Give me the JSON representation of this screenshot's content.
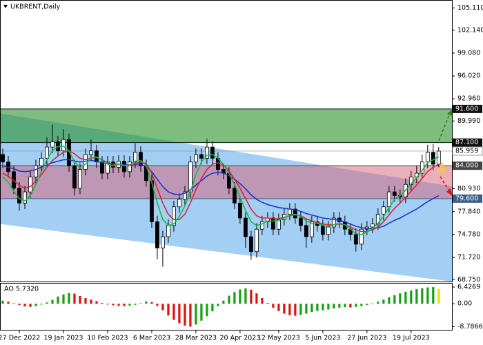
{
  "chart_data": {
    "type": "candlestick",
    "title": "UKBRENT,Daily",
    "xlim": [
      -0.5,
      81.4
    ],
    "ylim": [
      68.5,
      106.0
    ],
    "yticks": [
      {
        "value": 105.11,
        "label": "105.110"
      },
      {
        "value": 102.14,
        "label": "102.140"
      },
      {
        "value": 99.08,
        "label": "99.080"
      },
      {
        "value": 96.02,
        "label": "96.020"
      },
      {
        "value": 92.96,
        "label": "92.960"
      },
      {
        "value": 89.99,
        "label": "89.990"
      },
      {
        "value": 80.93,
        "label": "80.930"
      },
      {
        "value": 77.84,
        "label": "77.840"
      },
      {
        "value": 74.78,
        "label": "74.780"
      },
      {
        "value": 71.72,
        "label": "71.720"
      },
      {
        "value": 68.75,
        "label": "68.750"
      }
    ],
    "xticks": [
      {
        "value": 3,
        "label": "27 Dec 2022"
      },
      {
        "value": 11,
        "label": "19 Jan 2023"
      },
      {
        "value": 19,
        "label": "10 Feb 2023"
      },
      {
        "value": 27,
        "label": "6 Mar 2023"
      },
      {
        "value": 35,
        "label": "28 Mar 2023"
      },
      {
        "value": 43,
        "label": "20 Apr 2023"
      },
      {
        "value": 50,
        "label": "12 May 2023"
      },
      {
        "value": 58,
        "label": "5 Jun 2023"
      },
      {
        "value": 66,
        "label": "27 Jun 2023"
      },
      {
        "value": 74,
        "label": "19 Jul 2023"
      }
    ],
    "open": [
      85.5,
      84.5,
      83.2,
      81.0,
      79.0,
      80.5,
      82.5,
      84.0,
      85.0,
      86.5,
      87.2,
      86.0,
      87.5,
      84.0,
      81.0,
      83.5,
      85.5,
      86.0,
      84.5,
      83.0,
      84.5,
      83.8,
      84.6,
      83.2,
      84.5,
      85.8,
      84.0,
      82.0,
      76.5,
      73.0,
      74.5,
      76.0,
      78.5,
      79.5,
      80.5,
      84.5,
      85.5,
      85.0,
      86.5,
      85.0,
      83.5,
      83.0,
      81.0,
      79.0,
      77.0,
      74.5,
      72.5,
      75.5,
      76.5,
      77.0,
      75.5,
      76.8,
      77.5,
      78.2,
      77.0,
      76.0,
      74.5,
      76.5,
      76.0,
      74.8,
      75.8,
      77.0,
      76.5,
      75.5,
      74.8,
      73.5,
      75.5,
      75.8,
      76.2,
      77.5,
      78.5,
      80.5,
      80.0,
      79.8,
      81.5,
      82.5,
      83.0,
      84.5,
      85.8,
      84.2
    ],
    "high": [
      86.3,
      85.3,
      84.0,
      81.8,
      81.3,
      83.3,
      84.8,
      85.8,
      87.8,
      89.5,
      88.0,
      88.9,
      88.3,
      84.8,
      84.3,
      86.3,
      87.5,
      86.8,
      85.3,
      85.3,
      85.3,
      85.4,
      85.4,
      85.3,
      87.0,
      86.6,
      84.8,
      82.8,
      77.3,
      75.3,
      76.8,
      79.3,
      80.3,
      81.3,
      85.3,
      86.3,
      86.3,
      87.6,
      87.3,
      85.8,
      84.3,
      83.8,
      81.8,
      79.8,
      77.8,
      75.3,
      76.3,
      77.3,
      77.8,
      77.8,
      77.6,
      78.3,
      79.0,
      79.0,
      77.8,
      76.8,
      77.3,
      77.3,
      76.8,
      76.6,
      77.8,
      77.8,
      77.3,
      76.3,
      75.6,
      76.3,
      76.6,
      77.0,
      78.3,
      79.3,
      81.3,
      81.3,
      80.8,
      82.3,
      83.3,
      84.0,
      85.5,
      86.8,
      86.9,
      86.5
    ],
    "low": [
      83.7,
      82.4,
      80.2,
      78.0,
      78.2,
      79.7,
      81.7,
      83.2,
      84.2,
      85.7,
      85.2,
      85.2,
      83.2,
      80.0,
      80.2,
      82.7,
      84.7,
      83.7,
      82.2,
      82.2,
      83.0,
      83.0,
      82.4,
      82.4,
      83.7,
      83.2,
      81.2,
      75.7,
      71.5,
      70.5,
      73.7,
      75.2,
      77.7,
      78.7,
      79.7,
      83.7,
      84.2,
      84.2,
      84.2,
      82.7,
      82.2,
      80.2,
      78.2,
      76.2,
      73.0,
      71.4,
      71.7,
      74.7,
      75.7,
      74.7,
      74.7,
      76.0,
      76.7,
      76.2,
      75.2,
      73.0,
      73.7,
      75.2,
      74.0,
      74.0,
      75.0,
      75.7,
      74.7,
      74.0,
      72.5,
      72.7,
      74.7,
      75.0,
      75.4,
      76.7,
      77.7,
      79.2,
      79.0,
      79.0,
      80.7,
      81.7,
      82.2,
      83.7,
      83.4,
      83.8
    ],
    "close": [
      84.5,
      83.2,
      81.0,
      79.0,
      80.5,
      82.5,
      84.0,
      85.0,
      86.5,
      87.2,
      86.0,
      87.5,
      84.0,
      81.0,
      83.5,
      85.5,
      86.0,
      84.5,
      83.0,
      84.5,
      83.8,
      84.6,
      83.2,
      84.5,
      85.8,
      84.0,
      82.0,
      76.5,
      73.0,
      74.5,
      76.0,
      78.5,
      79.5,
      80.5,
      84.5,
      85.5,
      85.0,
      86.5,
      85.0,
      83.5,
      83.0,
      81.0,
      79.0,
      77.0,
      74.5,
      72.5,
      75.5,
      76.5,
      77.0,
      75.5,
      76.8,
      77.5,
      78.2,
      77.0,
      76.0,
      74.5,
      76.5,
      76.0,
      74.8,
      75.8,
      77.0,
      76.5,
      75.5,
      74.8,
      73.5,
      75.5,
      75.8,
      76.2,
      77.5,
      78.5,
      80.5,
      80.0,
      79.8,
      81.5,
      82.5,
      83.0,
      84.5,
      85.8,
      84.2,
      85.959
    ],
    "series": [
      {
        "color": "#1f35c8",
        "values": [
          84.0,
          83.8,
          83.6,
          83.3,
          83.2,
          83.3,
          83.5,
          83.8,
          84.1,
          84.4,
          84.6,
          84.8,
          84.8,
          84.6,
          84.5,
          84.6,
          84.7,
          84.6,
          84.4,
          84.3,
          84.2,
          84.2,
          84.1,
          84.1,
          84.2,
          84.2,
          83.9,
          83.2,
          82.2,
          81.2,
          80.5,
          80.2,
          80.1,
          80.3,
          80.8,
          81.4,
          82.0,
          82.6,
          83.0,
          83.1,
          83.0,
          82.7,
          82.2,
          81.6,
          80.9,
          80.1,
          79.5,
          79.1,
          78.8,
          78.6,
          78.4,
          78.3,
          78.2,
          78.1,
          77.9,
          77.6,
          77.4,
          77.2,
          77.0,
          76.9,
          76.8,
          76.7,
          76.5,
          76.2,
          75.9,
          75.7,
          75.6,
          75.6,
          75.7,
          75.9,
          76.3,
          76.7,
          77.0,
          77.4,
          77.8,
          78.2,
          78.7,
          79.2,
          79.6,
          80.0
        ]
      },
      {
        "color": "#d0283c",
        "values": [
          83.0,
          82.6,
          82.0,
          81.4,
          81.0,
          81.2,
          81.9,
          82.8,
          83.8,
          84.7,
          85.3,
          85.8,
          86.0,
          85.6,
          85.0,
          84.8,
          85.0,
          85.1,
          84.8,
          84.4,
          84.2,
          84.2,
          84.0,
          84.0,
          84.3,
          84.5,
          84.3,
          83.0,
          81.0,
          79.0,
          77.5,
          76.8,
          76.8,
          77.5,
          79.0,
          80.8,
          82.3,
          83.5,
          84.2,
          84.4,
          84.1,
          83.3,
          82.2,
          81.0,
          79.6,
          78.2,
          77.3,
          77.0,
          77.0,
          76.9,
          76.9,
          77.1,
          77.3,
          77.4,
          77.3,
          76.9,
          76.6,
          76.4,
          76.2,
          76.1,
          76.1,
          76.2,
          76.1,
          75.8,
          75.4,
          75.2,
          75.2,
          75.4,
          75.8,
          76.5,
          77.4,
          78.3,
          79.0,
          79.8,
          80.6,
          81.4,
          82.3,
          83.2,
          83.8,
          84.2
        ]
      },
      {
        "color": "#16b84a",
        "values": [
          82.5,
          81.8,
          80.6,
          79.6,
          79.3,
          80.0,
          81.5,
          83.2,
          84.8,
          86.0,
          86.6,
          86.6,
          86.0,
          84.5,
          83.8,
          84.2,
          85.0,
          85.2,
          84.7,
          84.2,
          84.0,
          84.2,
          84.0,
          84.1,
          84.6,
          84.7,
          84.0,
          81.8,
          79.0,
          76.8,
          76.0,
          76.2,
          77.2,
          78.6,
          80.5,
          82.8,
          84.5,
          85.4,
          85.5,
          85.0,
          84.2,
          83.0,
          81.5,
          79.8,
          78.0,
          76.5,
          76.0,
          76.2,
          76.6,
          76.6,
          76.7,
          77.0,
          77.4,
          77.5,
          77.2,
          76.6,
          76.3,
          76.3,
          76.0,
          75.9,
          76.1,
          76.3,
          76.1,
          75.5,
          74.9,
          74.8,
          75.1,
          75.6,
          76.3,
          77.2,
          78.4,
          79.5,
          80.0,
          80.7,
          81.6,
          82.4,
          83.4,
          84.4,
          84.8,
          85.2
        ]
      }
    ],
    "zones": [
      {
        "low": 87.1,
        "high": 91.6,
        "color": "rgba(40,145,40,0.6)"
      },
      {
        "low": 79.6,
        "high": 84.0,
        "color": "rgba(215,95,115,0.5)"
      }
    ],
    "channel": {
      "x": [
        -0.5,
        81.4
      ],
      "upper": [
        91.0,
        81.25
      ],
      "lower": [
        76.2,
        68.5
      ],
      "color": "#a3cff5"
    },
    "levels": [
      {
        "value": 91.6,
        "label": "91.600",
        "color": "#111111"
      },
      {
        "value": 87.1,
        "label": "87.100",
        "color": "#111111"
      },
      {
        "value": 84.0,
        "label": "84.000",
        "color": "#444444"
      },
      {
        "value": 79.6,
        "label": "79.600",
        "color": "#3a5f8a"
      }
    ],
    "current_price": 85.959,
    "ao": {
      "title": "AO 5.7320",
      "ylim": [
        -9.5,
        7.5
      ],
      "yticks": [
        6.4269,
        {
          "value": 0,
          "label": "0.00"
        },
        -8.7866
      ],
      "up_color": "#12a012",
      "down_color": "#e01010",
      "last_color": "#e6e000",
      "values": [
        1.2,
        0.8,
        0.2,
        -0.5,
        -1.0,
        -1.2,
        -0.9,
        -0.3,
        0.5,
        1.5,
        2.8,
        3.6,
        4.1,
        3.9,
        3.0,
        2.2,
        1.6,
        1.0,
        0.3,
        -0.3,
        -0.6,
        -0.8,
        -0.9,
        -0.7,
        -0.4,
        0.2,
        0.9,
        0.6,
        -0.8,
        -2.5,
        -4.5,
        -6.2,
        -7.5,
        -8.4,
        -8.8,
        -8.0,
        -6.5,
        -4.8,
        -2.9,
        -0.9,
        1.2,
        3.1,
        4.5,
        5.5,
        5.9,
        5.4,
        4.0,
        2.2,
        0.3,
        -1.5,
        -2.8,
        -3.8,
        -4.4,
        -4.6,
        -4.3,
        -3.8,
        -3.2,
        -2.8,
        -2.5,
        -2.2,
        -1.8,
        -1.5,
        -1.3,
        -1.4,
        -1.2,
        -0.9,
        -0.5,
        0.1,
        0.8,
        1.6,
        2.5,
        3.3,
        4.0,
        4.6,
        5.1,
        5.6,
        6.0,
        6.3,
        6.4,
        5.732
      ]
    }
  }
}
